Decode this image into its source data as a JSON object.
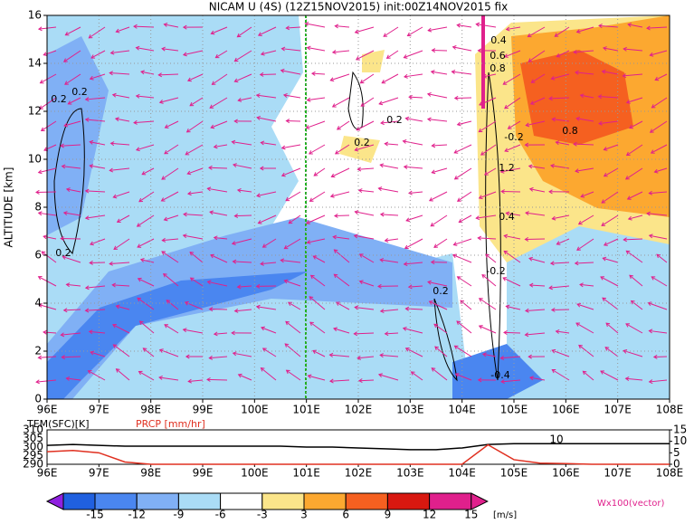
{
  "chart_data": [
    {
      "type": "contour",
      "title": "NICAM U (4S) (12Z15NOV2015) init:00Z14NOV2015 fix",
      "y_label": "ALTITUDE [km]",
      "xlim": [
        96,
        108
      ],
      "ylim": [
        0,
        16
      ],
      "grid": true,
      "xticks": [
        {
          "value": 96,
          "label": "96E"
        },
        {
          "value": 97,
          "label": "97E"
        },
        {
          "value": 98,
          "label": "98E"
        },
        {
          "value": 99,
          "label": "99E"
        },
        {
          "value": 100,
          "label": "100E"
        },
        {
          "value": 101,
          "label": "101E"
        },
        {
          "value": 102,
          "label": "102E"
        },
        {
          "value": 103,
          "label": "103E"
        },
        {
          "value": 104,
          "label": "104E"
        },
        {
          "value": 105,
          "label": "105E"
        },
        {
          "value": 106,
          "label": "106E"
        },
        {
          "value": 107,
          "label": "107E"
        },
        {
          "value": 108,
          "label": "108E"
        }
      ],
      "yticks": [
        0,
        2,
        4,
        6,
        8,
        10,
        12,
        14,
        16
      ],
      "annotations": [
        "0.2",
        "0.2",
        "0.2",
        "0.2",
        "0.2",
        "-0.2",
        "0.8",
        "1.2",
        "0.4",
        "0.6",
        "0.8",
        "-0.2",
        "0.2",
        "-0.4",
        "0.4"
      ]
    },
    {
      "type": "line",
      "labels": [
        "TEM(SFC)[K]",
        "PRCP [mm/hr]"
      ],
      "annotation": "10",
      "xlim": [
        96,
        108
      ],
      "ylim": [
        290,
        310
      ],
      "yticks": [
        290,
        295,
        300,
        305,
        310
      ],
      "y2lim": [
        0,
        15
      ],
      "y2ticks": [
        0,
        5,
        10,
        15
      ],
      "xticks": [
        {
          "value": 96,
          "label": "96E"
        },
        {
          "value": 97,
          "label": "97E"
        },
        {
          "value": 98,
          "label": "98E"
        },
        {
          "value": 99,
          "label": "99E"
        },
        {
          "value": 100,
          "label": "100E"
        },
        {
          "value": 101,
          "label": "101E"
        },
        {
          "value": 102,
          "label": "102E"
        },
        {
          "value": 103,
          "label": "103E"
        },
        {
          "value": 104,
          "label": "104E"
        },
        {
          "value": 105,
          "label": "105E"
        },
        {
          "value": 106,
          "label": "106E"
        },
        {
          "value": 107,
          "label": "107E"
        },
        {
          "value": 108,
          "label": "108E"
        }
      ],
      "x": [
        96,
        96.5,
        97,
        97.5,
        98,
        98.5,
        99,
        99.5,
        100,
        100.5,
        101,
        101.5,
        102,
        102.5,
        103,
        103.5,
        104,
        104.5,
        105,
        105.5,
        106,
        106.5,
        107,
        107.5,
        108
      ],
      "series": [
        {
          "name": "TEM(SFC)",
          "color": "#000000",
          "axis": "y",
          "values": [
            301,
            301.5,
            301,
            300.5,
            300.5,
            300.5,
            300.5,
            300.5,
            300.5,
            300.5,
            300,
            300,
            299.5,
            299,
            298.5,
            298.5,
            299.5,
            301.5,
            302,
            302,
            302,
            302,
            302,
            302,
            302
          ]
        },
        {
          "name": "PRCP",
          "color": "#e03020",
          "axis": "y2",
          "values": [
            5.5,
            6,
            5,
            1,
            0,
            0,
            0,
            0,
            0,
            0,
            0,
            0,
            0,
            0,
            0,
            0,
            0,
            8.5,
            2,
            0.5,
            0.3,
            0,
            0,
            0,
            0
          ]
        }
      ]
    },
    {
      "type": "colorbar",
      "unit": "[m/s]",
      "note": "Wx100(vector)",
      "levels": [
        -15,
        -12,
        -9,
        -6,
        -3,
        3,
        6,
        9,
        12,
        15
      ],
      "colors": [
        "#9020e0",
        "#2060e0",
        "#4a86f0",
        "#80b0f5",
        "#aadcf6",
        "#ffffff",
        "#fbe58a",
        "#fca830",
        "#f56020",
        "#d81810",
        "#e0208c"
      ]
    }
  ]
}
